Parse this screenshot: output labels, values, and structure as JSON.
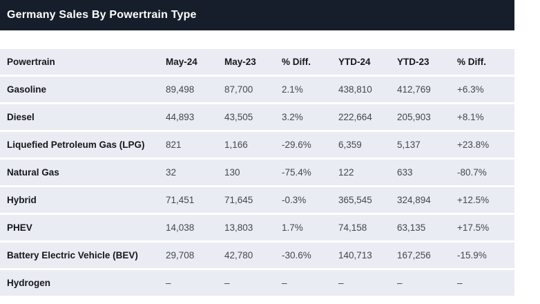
{
  "header": {
    "title": "Germany Sales By Powertrain Type"
  },
  "colors": {
    "header_bg": "#161e2b",
    "row_bg": "#e9ecf2",
    "name_text": "#15171c",
    "value_text": "#43474e"
  },
  "table": {
    "columns": [
      "Powertrain",
      "May-24",
      "May-23",
      "% Diff.",
      "YTD-24",
      "YTD-23",
      "% Diff."
    ],
    "rows": [
      [
        "Gasoline",
        "89,498",
        "87,700",
        "2.1%",
        "438,810",
        "412,769",
        "+6.3%"
      ],
      [
        "Diesel",
        "44,893",
        "43,505",
        "3.2%",
        "222,664",
        "205,903",
        "+8.1%"
      ],
      [
        "Liquefied Petroleum Gas (LPG)",
        "821",
        "1,166",
        "-29.6%",
        "6,359",
        "5,137",
        "+23.8%"
      ],
      [
        "Natural Gas",
        "32",
        "130",
        "-75.4%",
        "122",
        "633",
        "-80.7%"
      ],
      [
        "Hybrid",
        "71,451",
        "71,645",
        "-0.3%",
        "365,545",
        "324,894",
        "+12.5%"
      ],
      [
        "PHEV",
        "14,038",
        "13,803",
        "1.7%",
        "74,158",
        "63,135",
        "+17.5%"
      ],
      [
        "Battery Electric Vehicle (BEV)",
        "29,708",
        "42,780",
        "-30.6%",
        "140,713",
        "167,256",
        "-15.9%"
      ],
      [
        "Hydrogen",
        "–",
        "–",
        "–",
        "–",
        "–",
        "–"
      ]
    ]
  }
}
